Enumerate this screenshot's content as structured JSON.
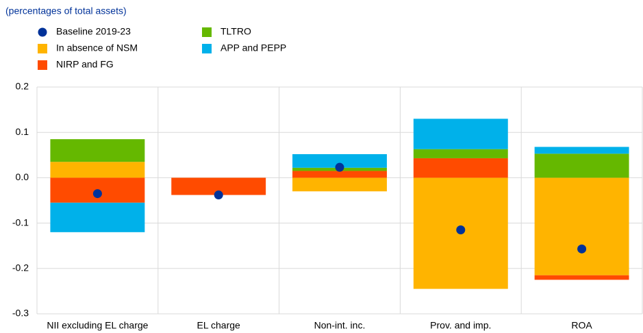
{
  "chart_data": {
    "type": "stacked-bar",
    "subtitle": "(percentages of total assets)",
    "categories": [
      "NII excluding EL charge",
      "EL charge",
      "Non-int. inc.",
      "Prov. and imp.",
      "ROA"
    ],
    "baseline": {
      "name": "Baseline 2019-23",
      "color": "#003299",
      "values": [
        -0.035,
        -0.038,
        0.023,
        -0.115,
        -0.157
      ]
    },
    "series": [
      {
        "name": "In absence of NSM",
        "color": "#ffb400",
        "values": [
          0.035,
          0,
          -0.03,
          -0.245,
          -0.215
        ]
      },
      {
        "name": "NIRP and FG",
        "color": "#ff4b00",
        "values": [
          -0.055,
          -0.038,
          0.015,
          0.043,
          -0.01
        ]
      },
      {
        "name": "TLTRO",
        "color": "#65b800",
        "values": [
          0.05,
          0,
          0.007,
          0.02,
          0.053
        ]
      },
      {
        "name": "APP and PEPP",
        "color": "#00b1ea",
        "values": [
          -0.065,
          0,
          0.03,
          0.067,
          0.015
        ]
      }
    ],
    "ylim": [
      -0.3,
      0.2
    ],
    "yticks": [
      -0.3,
      -0.2,
      -0.1,
      {
        "value": 0,
        "label": "0.0"
      },
      0.1,
      0.2
    ],
    "grid": true
  }
}
